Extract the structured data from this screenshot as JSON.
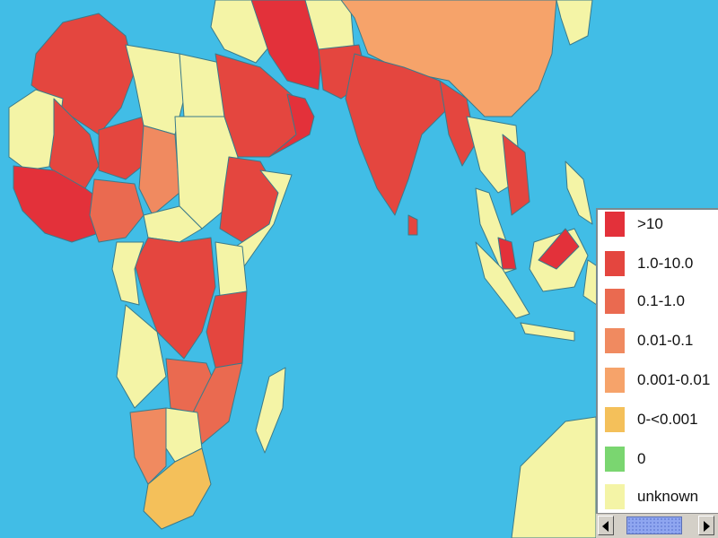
{
  "colors": {
    "ocean": "#41bde6",
    "gt10": "#e3313a",
    "r1_10": "#e4463f",
    "r01_1": "#ea6a50",
    "r001_01": "#f08a60",
    "r0001_001": "#f6a36a",
    "r0_0001": "#f4c05a",
    "zero": "#7ad670",
    "unknown": "#f4f4a6"
  },
  "legend": {
    "items": [
      {
        "label": ">10",
        "color": "#e3313a"
      },
      {
        "label": "1.0-10.0",
        "color": "#e4463f"
      },
      {
        "label": "0.1-1.0",
        "color": "#ea6a50"
      },
      {
        "label": "0.01-0.1",
        "color": "#f08a60"
      },
      {
        "label": "0.001-0.01",
        "color": "#f6a36a"
      },
      {
        "label": "0-<0.001",
        "color": "#f4c05a"
      },
      {
        "label": "0",
        "color": "#7ad670"
      },
      {
        "label": "unknown",
        "color": "#f4f4a6"
      }
    ]
  },
  "scrollbar": {
    "left_icon": "arrow-left-icon",
    "right_icon": "arrow-right-icon"
  }
}
